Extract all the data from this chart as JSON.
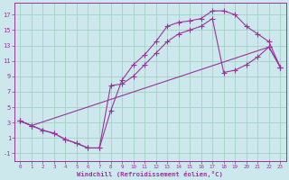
{
  "bg_color": "#cce8ec",
  "grid_color": "#99ccbb",
  "line_color": "#993399",
  "xlabel": "Windchill (Refroidissement éolien,°C)",
  "xlim": [
    -0.5,
    23.5
  ],
  "ylim": [
    -2.0,
    18.5
  ],
  "xticks": [
    0,
    1,
    2,
    3,
    4,
    5,
    6,
    7,
    8,
    9,
    10,
    11,
    12,
    13,
    14,
    15,
    16,
    17,
    18,
    19,
    20,
    21,
    22,
    23
  ],
  "yticks": [
    -1,
    1,
    3,
    5,
    7,
    9,
    11,
    13,
    15,
    17
  ],
  "line1_x": [
    0,
    1,
    2,
    3,
    4,
    5,
    6,
    7,
    8,
    9,
    10,
    11,
    12,
    13,
    14,
    15,
    16,
    17,
    18,
    19,
    20,
    21,
    22,
    23
  ],
  "line1_y": [
    3.2,
    2.6,
    2.0,
    1.6,
    0.8,
    0.3,
    -0.3,
    -0.3,
    4.5,
    8.5,
    10.5,
    11.8,
    13.5,
    15.5,
    16.0,
    16.2,
    16.5,
    17.5,
    17.5,
    17.0,
    15.5,
    14.5,
    13.5,
    10.2
  ],
  "line2_x": [
    0,
    1,
    2,
    3,
    4,
    5,
    6,
    7,
    8,
    9,
    10,
    11,
    12,
    13,
    14,
    15,
    16,
    17,
    18,
    19,
    20,
    21,
    22,
    23
  ],
  "line2_y": [
    3.2,
    2.6,
    2.0,
    1.6,
    0.8,
    0.3,
    -0.3,
    -0.3,
    7.8,
    8.0,
    9.0,
    10.5,
    12.0,
    13.5,
    14.5,
    15.0,
    15.5,
    16.5,
    9.5,
    9.8,
    10.5,
    11.5,
    12.8,
    10.2
  ],
  "line3_x": [
    0,
    1,
    22,
    23
  ],
  "line3_y": [
    3.2,
    2.6,
    12.8,
    10.2
  ]
}
